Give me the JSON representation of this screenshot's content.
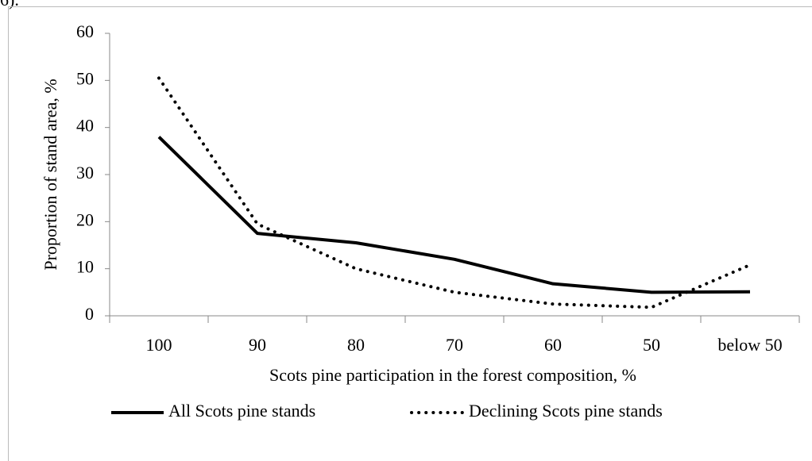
{
  "header_fragment": "6).",
  "chart_data": {
    "type": "line",
    "y_label": "Proportion of stand area, %",
    "x_label": "Scots pine participation in the forest composition, %",
    "categories": [
      "100",
      "90",
      "80",
      "70",
      "60",
      "50",
      "below 50"
    ],
    "series": [
      {
        "name": "All Scots pine stands",
        "color": "#000000",
        "style": "solid",
        "values": [
          38,
          17.5,
          15.5,
          12,
          6.8,
          5,
          5.1
        ]
      },
      {
        "name": "Declining Scots pine stands",
        "color": "#000000",
        "style": "dotted",
        "values": [
          50.5,
          19.5,
          10,
          5,
          2.5,
          1.8,
          10.8
        ]
      }
    ],
    "ylim": [
      0,
      60
    ],
    "yticks": [
      0,
      10,
      20,
      30,
      40,
      50,
      60
    ],
    "grid": false,
    "legend": "bottom"
  }
}
